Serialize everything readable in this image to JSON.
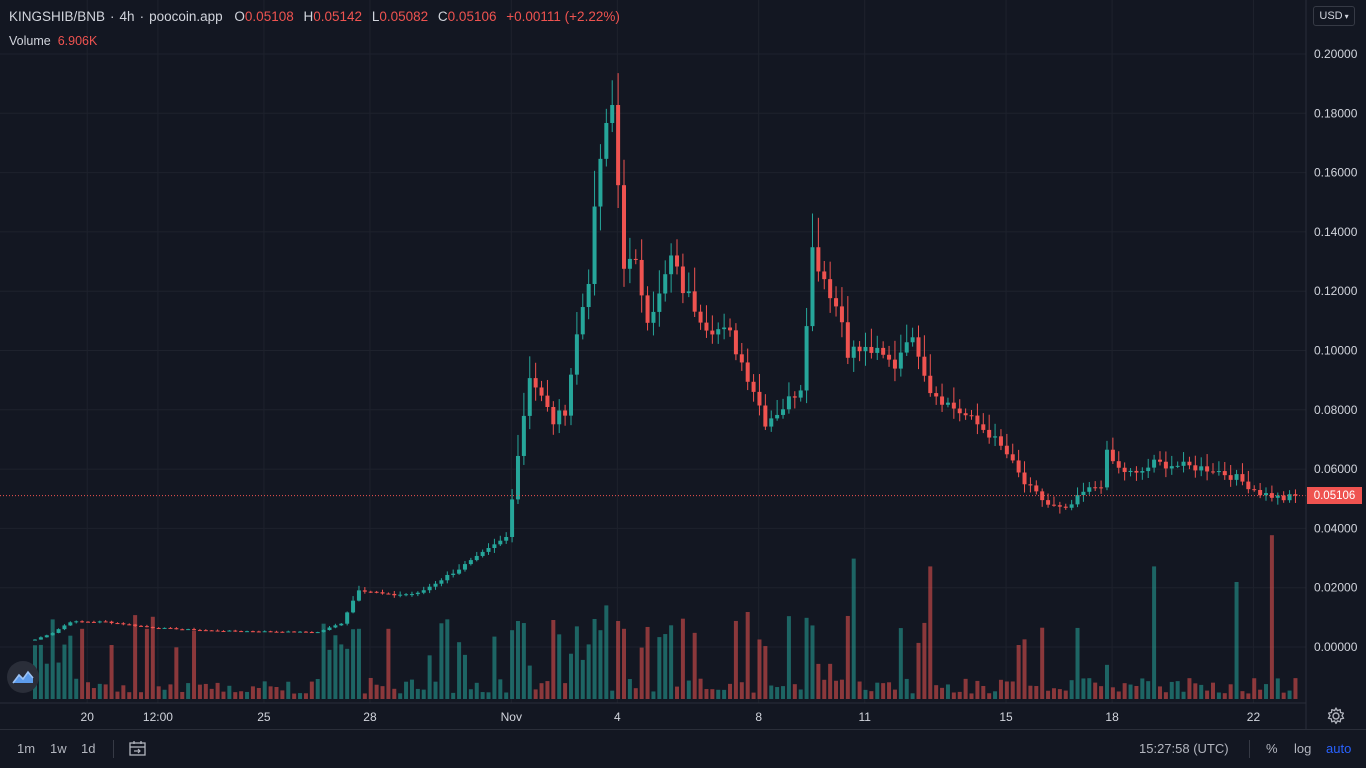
{
  "header": {
    "symbol": "KINGSHIB/BNB",
    "interval": "4h",
    "source": "poocoin.app",
    "ohlc": [
      {
        "label": "O",
        "value": "0.05108"
      },
      {
        "label": "H",
        "value": "0.05142"
      },
      {
        "label": "L",
        "value": "0.05082"
      },
      {
        "label": "C",
        "value": "0.05106"
      }
    ],
    "change": "+0.00111 (+2.22%)",
    "volume_label": "Volume",
    "volume_value": "6.906K"
  },
  "currency": "USD",
  "last_price": "0.05106",
  "bottom": {
    "ranges": [
      "1m",
      "1w",
      "1d"
    ],
    "time": "15:27:58 (UTC)",
    "percent": "%",
    "log": "log",
    "auto": "auto"
  },
  "colors": {
    "up": "#26a69a",
    "down": "#ef5350",
    "background": "#131722",
    "grid": "#1e222d",
    "accent": "#2962ff"
  },
  "icons": [
    "tradingview-logo-icon",
    "date-range-icon",
    "gear-icon",
    "chevron-down-icon"
  ],
  "chart_data": {
    "type": "candlestick",
    "title": "",
    "xlabel": "",
    "ylabel": "",
    "ylim": [
      -0.008,
      0.21
    ],
    "yticks": [
      "0.20000",
      "0.18000",
      "0.16000",
      "0.14000",
      "0.12000",
      "0.10000",
      "0.08000",
      "0.06000",
      "0.04000",
      "0.02000",
      "0.00000"
    ],
    "ytick_values": [
      0.2,
      0.18,
      0.16,
      0.14,
      0.12,
      0.1,
      0.08,
      0.06,
      0.04,
      0.02,
      0
    ],
    "xticks": [
      "20",
      "12:00",
      "25",
      "28",
      "Nov",
      "4",
      "8",
      "11",
      "15",
      "18",
      "22"
    ],
    "xtick_index": [
      7,
      19,
      37,
      55,
      79,
      97,
      121,
      139,
      163,
      181,
      205
    ],
    "grid": true,
    "last_price": 0.05106,
    "key_points": [
      [
        0,
        0.0025
      ],
      [
        3,
        0.0048
      ],
      [
        6,
        0.0085
      ],
      [
        12,
        0.0085
      ],
      [
        20,
        0.0065
      ],
      [
        30,
        0.0055
      ],
      [
        40,
        0.0052
      ],
      [
        48,
        0.005
      ],
      [
        52,
        0.008
      ],
      [
        55,
        0.0195
      ],
      [
        60,
        0.0175
      ],
      [
        65,
        0.018
      ],
      [
        70,
        0.024
      ],
      [
        75,
        0.03
      ],
      [
        80,
        0.037
      ],
      [
        82,
        0.065
      ],
      [
        84,
        0.092
      ],
      [
        86,
        0.084
      ],
      [
        88,
        0.076
      ],
      [
        90,
        0.08
      ],
      [
        92,
        0.105
      ],
      [
        94,
        0.125
      ],
      [
        96,
        0.165
      ],
      [
        98,
        0.182
      ],
      [
        100,
        0.13
      ],
      [
        102,
        0.128
      ],
      [
        104,
        0.112
      ],
      [
        106,
        0.118
      ],
      [
        108,
        0.131
      ],
      [
        110,
        0.121
      ],
      [
        114,
        0.109
      ],
      [
        118,
        0.105
      ],
      [
        122,
        0.087
      ],
      [
        124,
        0.076
      ],
      [
        127,
        0.081
      ],
      [
        130,
        0.088
      ],
      [
        132,
        0.134
      ],
      [
        135,
        0.12
      ],
      [
        137,
        0.11
      ],
      [
        138,
        0.1
      ],
      [
        142,
        0.1
      ],
      [
        146,
        0.095
      ],
      [
        148,
        0.105
      ],
      [
        150,
        0.1
      ],
      [
        152,
        0.087
      ],
      [
        155,
        0.082
      ],
      [
        158,
        0.078
      ],
      [
        162,
        0.072
      ],
      [
        165,
        0.065
      ],
      [
        168,
        0.055
      ],
      [
        172,
        0.048
      ],
      [
        175,
        0.046
      ],
      [
        178,
        0.052
      ],
      [
        181,
        0.055
      ],
      [
        182,
        0.065
      ],
      [
        184,
        0.06
      ],
      [
        187,
        0.058
      ],
      [
        190,
        0.062
      ],
      [
        195,
        0.061
      ],
      [
        200,
        0.06
      ],
      [
        204,
        0.057
      ],
      [
        208,
        0.052
      ],
      [
        212,
        0.05
      ],
      [
        214,
        0.051
      ]
    ],
    "volume_spikes": [
      [
        8,
        0.9
      ],
      [
        19,
        0.9
      ],
      [
        55,
        0.9
      ],
      [
        60,
        0.9
      ],
      [
        78,
        0.8
      ],
      [
        82,
        1.0
      ],
      [
        94,
        0.7
      ],
      [
        97,
        1.2
      ],
      [
        100,
        0.9
      ],
      [
        133,
        0.45
      ],
      [
        139,
        1.8
      ],
      [
        152,
        1.7
      ],
      [
        183,
        0.15
      ],
      [
        190,
        1.7
      ],
      [
        204,
        1.5
      ],
      [
        210,
        2.1
      ]
    ]
  }
}
